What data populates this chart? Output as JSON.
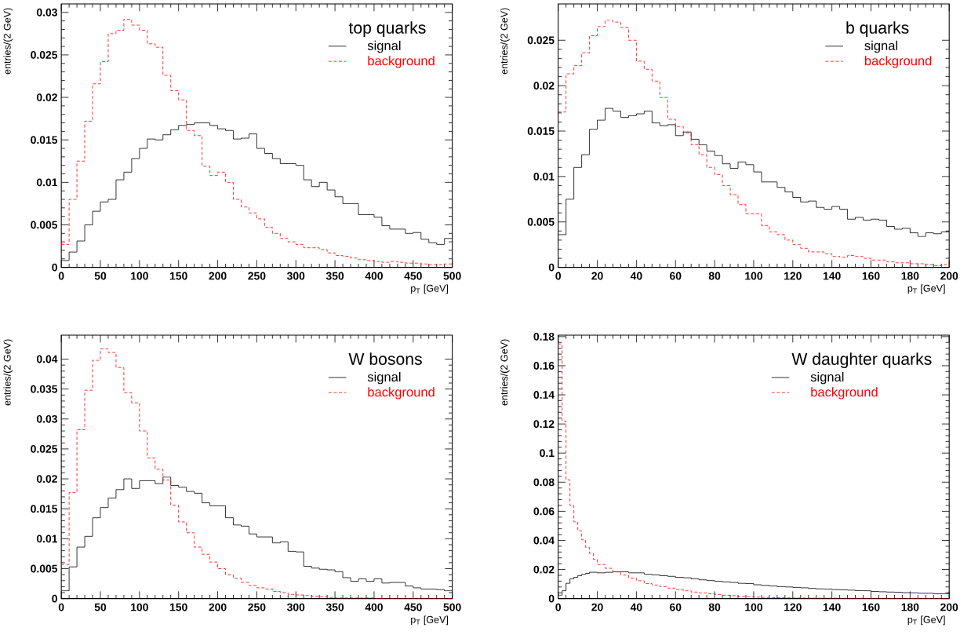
{
  "chart_data": [
    {
      "type": "histogram",
      "legend_title": "top quarks",
      "xlabel": "p$_{T}$ [GeV]",
      "ylabel": "entries/(2 GeV)",
      "legend": "top right",
      "xlim": [
        0,
        500
      ],
      "ylim": [
        0,
        0.031
      ],
      "xticks": [
        0,
        50,
        100,
        150,
        200,
        250,
        300,
        350,
        400,
        450,
        500
      ],
      "yticks": [
        0,
        0.005,
        0.01,
        0.015,
        0.02,
        0.025,
        0.03
      ],
      "bins": [
        0,
        10,
        20,
        30,
        40,
        50,
        60,
        70,
        80,
        90,
        100,
        110,
        120,
        130,
        140,
        150,
        160,
        170,
        180,
        190,
        200,
        210,
        220,
        230,
        240,
        250,
        260,
        270,
        280,
        290,
        300,
        310,
        320,
        330,
        340,
        350,
        360,
        370,
        380,
        390,
        400,
        410,
        420,
        430,
        440,
        450,
        460,
        470,
        480,
        490,
        500
      ],
      "series": [
        {
          "name": "signal",
          "color": "#000000",
          "line_style": "solid",
          "values": [
            0.0008,
            0.0018,
            0.0031,
            0.005,
            0.0066,
            0.0077,
            0.008,
            0.0103,
            0.0112,
            0.0128,
            0.014,
            0.0151,
            0.015,
            0.0156,
            0.0162,
            0.0167,
            0.0168,
            0.017,
            0.017,
            0.0167,
            0.0163,
            0.0161,
            0.0151,
            0.0152,
            0.0157,
            0.014,
            0.0134,
            0.0128,
            0.0122,
            0.0122,
            0.012,
            0.0103,
            0.0095,
            0.01,
            0.0091,
            0.0083,
            0.0075,
            0.0075,
            0.0062,
            0.0062,
            0.0059,
            0.0049,
            0.0045,
            0.0045,
            0.004,
            0.0041,
            0.0033,
            0.0029,
            0.0027,
            0.0034
          ]
        },
        {
          "name": "background",
          "color": "#ff0000",
          "line_style": "dashed",
          "values": [
            0.0027,
            0.008,
            0.0125,
            0.0172,
            0.0216,
            0.0242,
            0.0275,
            0.0279,
            0.0292,
            0.0285,
            0.0279,
            0.0263,
            0.0259,
            0.0226,
            0.0208,
            0.0197,
            0.0161,
            0.0155,
            0.0119,
            0.0108,
            0.0112,
            0.01,
            0.008,
            0.0071,
            0.0064,
            0.0057,
            0.0047,
            0.004,
            0.0034,
            0.003,
            0.0027,
            0.0023,
            0.0023,
            0.0021,
            0.0017,
            0.0014,
            0.0013,
            0.0011,
            0.0009,
            0.0008,
            0.0007,
            0.0006,
            0.0007,
            0.0006,
            0.0005,
            0.0005,
            0.0004,
            0.0003,
            0.0003,
            0.0004
          ]
        }
      ]
    },
    {
      "type": "histogram",
      "legend_title": "b quarks",
      "xlabel": "p$_{T}$ [GeV]",
      "ylabel": "entries/(2 GeV)",
      "legend": "top right",
      "xlim": [
        0,
        200
      ],
      "ylim": [
        0,
        0.029
      ],
      "xticks": [
        0,
        20,
        40,
        60,
        80,
        100,
        120,
        140,
        160,
        180,
        200
      ],
      "yticks": [
        0,
        0.005,
        0.01,
        0.015,
        0.02,
        0.025
      ],
      "bins": [
        0,
        4,
        8,
        12,
        16,
        20,
        24,
        28,
        32,
        36,
        40,
        44,
        48,
        52,
        56,
        60,
        64,
        68,
        72,
        76,
        80,
        84,
        88,
        92,
        96,
        100,
        104,
        108,
        112,
        116,
        120,
        124,
        128,
        132,
        136,
        140,
        144,
        148,
        152,
        156,
        160,
        164,
        168,
        172,
        176,
        180,
        184,
        188,
        192,
        196,
        200
      ],
      "series": [
        {
          "name": "signal",
          "color": "#000000",
          "line_style": "solid",
          "values": [
            0.0036,
            0.0075,
            0.011,
            0.0124,
            0.0152,
            0.0162,
            0.0175,
            0.0172,
            0.0165,
            0.0167,
            0.0169,
            0.0172,
            0.0159,
            0.0156,
            0.0157,
            0.0145,
            0.0149,
            0.0141,
            0.0135,
            0.0128,
            0.0123,
            0.0114,
            0.0109,
            0.0116,
            0.0113,
            0.0105,
            0.0094,
            0.0094,
            0.0088,
            0.0083,
            0.0077,
            0.0072,
            0.0073,
            0.0066,
            0.0064,
            0.0067,
            0.0064,
            0.0053,
            0.0055,
            0.0052,
            0.0053,
            0.0052,
            0.0045,
            0.0042,
            0.0043,
            0.0038,
            0.0034,
            0.0038,
            0.0037,
            0.0039
          ]
        },
        {
          "name": "background",
          "color": "#ff0000",
          "line_style": "dashed",
          "values": [
            0.0171,
            0.0213,
            0.0222,
            0.0236,
            0.0255,
            0.0265,
            0.0272,
            0.027,
            0.0264,
            0.025,
            0.0227,
            0.0218,
            0.0205,
            0.0187,
            0.0163,
            0.0155,
            0.0148,
            0.0135,
            0.0124,
            0.011,
            0.0102,
            0.009,
            0.008,
            0.0069,
            0.0059,
            0.0059,
            0.0046,
            0.0039,
            0.0036,
            0.003,
            0.0025,
            0.0021,
            0.0017,
            0.0017,
            0.0015,
            0.0012,
            0.0011,
            0.0013,
            0.0012,
            0.001,
            0.0008,
            0.0008,
            0.0006,
            0.0005,
            0.0005,
            0.0004,
            0.0004,
            0.0003,
            0.0002,
            0.0003
          ]
        }
      ]
    },
    {
      "type": "histogram",
      "legend_title": "W bosons",
      "xlabel": "p$_{T}$ [GeV]",
      "ylabel": "entries/(2 GeV)",
      "legend": "top right",
      "xlim": [
        0,
        500
      ],
      "ylim": [
        0,
        0.044
      ],
      "xticks": [
        0,
        50,
        100,
        150,
        200,
        250,
        300,
        350,
        400,
        450,
        500
      ],
      "yticks": [
        0,
        0.005,
        0.01,
        0.015,
        0.02,
        0.025,
        0.03,
        0.035,
        0.04
      ],
      "bins": [
        0,
        10,
        20,
        30,
        40,
        50,
        60,
        70,
        80,
        90,
        100,
        110,
        120,
        130,
        140,
        150,
        160,
        170,
        180,
        190,
        200,
        210,
        220,
        230,
        240,
        250,
        260,
        270,
        280,
        290,
        300,
        310,
        320,
        330,
        340,
        350,
        360,
        370,
        380,
        390,
        400,
        410,
        420,
        430,
        440,
        450,
        460,
        470,
        480,
        490,
        500
      ],
      "series": [
        {
          "name": "signal",
          "color": "#000000",
          "line_style": "solid",
          "values": [
            0.0013,
            0.0053,
            0.0086,
            0.0104,
            0.0135,
            0.0152,
            0.0168,
            0.0182,
            0.02,
            0.0184,
            0.0197,
            0.0197,
            0.0192,
            0.0203,
            0.0189,
            0.0186,
            0.0179,
            0.0176,
            0.016,
            0.0155,
            0.0155,
            0.0135,
            0.0123,
            0.0121,
            0.0108,
            0.0103,
            0.0103,
            0.0093,
            0.0095,
            0.0079,
            0.0078,
            0.0054,
            0.0051,
            0.0049,
            0.0048,
            0.0045,
            0.0035,
            0.0029,
            0.0033,
            0.0029,
            0.0033,
            0.0026,
            0.0027,
            0.0027,
            0.0021,
            0.0018,
            0.0016,
            0.0016,
            0.0015,
            0.0013
          ]
        },
        {
          "name": "background",
          "color": "#ff0000",
          "line_style": "dashed",
          "values": [
            0.0057,
            0.0177,
            0.0282,
            0.0348,
            0.0398,
            0.0417,
            0.0411,
            0.0386,
            0.0344,
            0.0327,
            0.028,
            0.0235,
            0.0216,
            0.0198,
            0.0156,
            0.0128,
            0.011,
            0.0086,
            0.0074,
            0.0061,
            0.005,
            0.004,
            0.0034,
            0.0027,
            0.0022,
            0.0018,
            0.0016,
            0.0012,
            0.001,
            0.0007,
            0.0006,
            0.0005,
            0.0004,
            0.0003,
            0.0002,
            0.0001,
            0.0001,
            0.0001,
            0.0001,
            0.0001,
            0,
            0,
            0,
            0,
            0,
            0,
            0,
            0,
            0,
            0
          ]
        }
      ]
    },
    {
      "type": "histogram",
      "legend_title": "W daughter quarks",
      "xlabel": "p$_{T}$ [GeV]",
      "ylabel": "entries/(2 GeV)",
      "legend": "top right",
      "xlim": [
        0,
        200
      ],
      "ylim": [
        0,
        0.181
      ],
      "xticks": [
        0,
        20,
        40,
        60,
        80,
        100,
        120,
        140,
        160,
        180,
        200
      ],
      "yticks": [
        0,
        0.02,
        0.04,
        0.06,
        0.08,
        0.1,
        0.12,
        0.14,
        0.16,
        0.18
      ],
      "bins": [
        0,
        2,
        4,
        6,
        8,
        10,
        12,
        14,
        16,
        18,
        20,
        24,
        28,
        32,
        36,
        40,
        44,
        48,
        52,
        56,
        60,
        64,
        68,
        72,
        76,
        80,
        84,
        88,
        92,
        96,
        100,
        104,
        108,
        112,
        116,
        120,
        124,
        128,
        132,
        136,
        140,
        144,
        148,
        152,
        156,
        160,
        164,
        168,
        172,
        176,
        180,
        184,
        188,
        192,
        196,
        200
      ],
      "series": [
        {
          "name": "signal",
          "color": "#000000",
          "line_style": "solid",
          "values": [
            0.0023,
            0.0054,
            0.0105,
            0.0136,
            0.0146,
            0.0157,
            0.0167,
            0.0173,
            0.0181,
            0.0181,
            0.0177,
            0.0181,
            0.0184,
            0.0184,
            0.0177,
            0.0177,
            0.0167,
            0.0163,
            0.0157,
            0.0153,
            0.0146,
            0.0143,
            0.0136,
            0.0129,
            0.0124,
            0.0119,
            0.0115,
            0.0111,
            0.0105,
            0.0103,
            0.0095,
            0.0091,
            0.0087,
            0.0082,
            0.008,
            0.0077,
            0.0074,
            0.007,
            0.0067,
            0.0066,
            0.0062,
            0.006,
            0.0058,
            0.0055,
            0.0054,
            0.0049,
            0.0047,
            0.0045,
            0.0044,
            0.0041,
            0.004,
            0.0037,
            0.0037,
            0.0033,
            0.0034
          ]
        },
        {
          "name": "background",
          "color": "#ff0000",
          "line_style": "dashed",
          "values": [
            0.175,
            0.122,
            0.0816,
            0.064,
            0.0527,
            0.0466,
            0.0404,
            0.0352,
            0.0311,
            0.027,
            0.0234,
            0.0208,
            0.0183,
            0.0162,
            0.0141,
            0.0123,
            0.0103,
            0.0093,
            0.0082,
            0.0072,
            0.0062,
            0.0054,
            0.0045,
            0.0039,
            0.0033,
            0.0028,
            0.0023,
            0.002,
            0.0016,
            0.0013,
            0.001,
            0.0008,
            0.0007,
            0.0006,
            0.0005,
            0.0004,
            0.0004,
            0.0003,
            0.0003,
            0.0003,
            0.0003,
            0.0002,
            0.0002,
            0.0002,
            0.0002,
            0.0002,
            0.0002,
            0.0001,
            0.0001,
            0.0001,
            0.0001,
            0.0001,
            0.0001,
            0.0001,
            0.0001
          ]
        }
      ]
    }
  ]
}
